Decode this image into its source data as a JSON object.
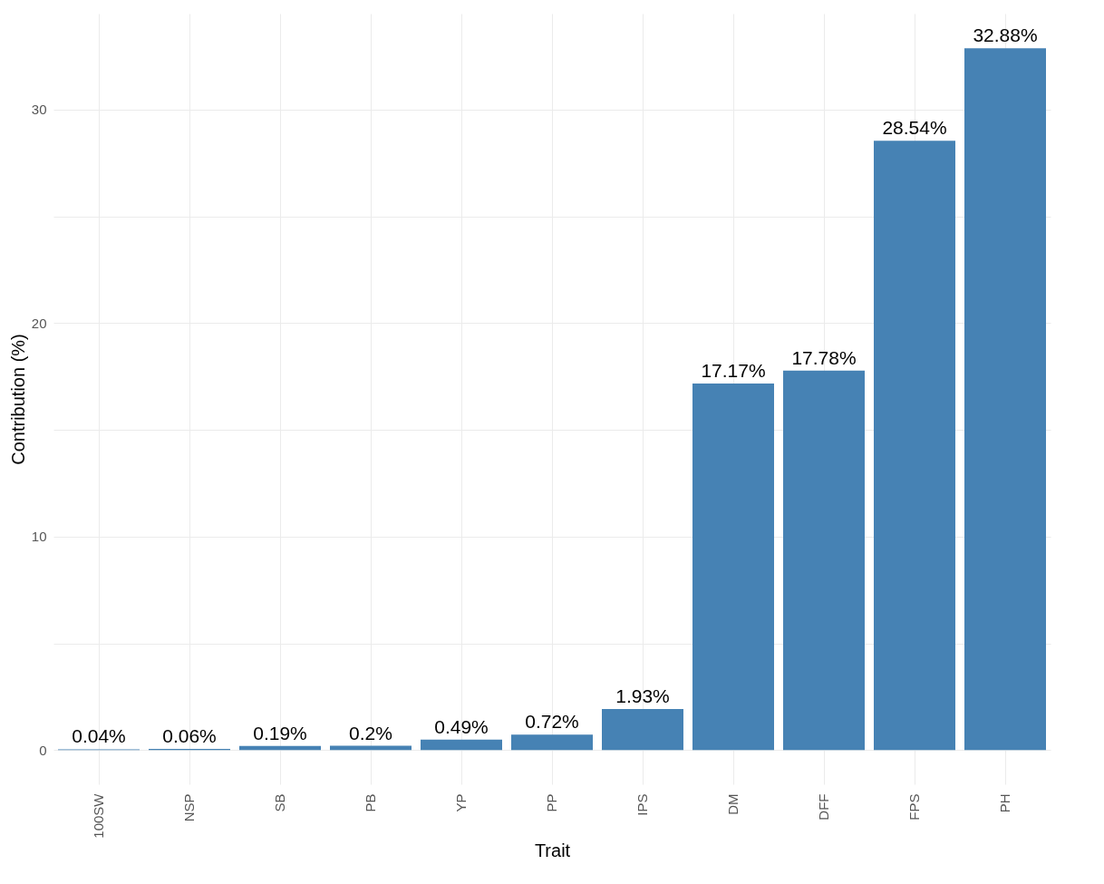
{
  "chart_data": {
    "type": "bar",
    "xlabel": "Trait",
    "ylabel": "Contribution (%)",
    "categories": [
      "100SW",
      "NSP",
      "SB",
      "PB",
      "YP",
      "PP",
      "IPS",
      "DM",
      "DFF",
      "FPS",
      "PH"
    ],
    "values": [
      0.04,
      0.06,
      0.19,
      0.2,
      0.49,
      0.72,
      1.93,
      17.17,
      17.78,
      28.54,
      32.88
    ],
    "value_labels": [
      "0.04%",
      "0.06%",
      "0.19%",
      "0.2%",
      "0.49%",
      "0.72%",
      "1.93%",
      "17.17%",
      "17.78%",
      "28.54%",
      "32.88%"
    ],
    "color": "#4682b4",
    "ylim": [
      -1.6,
      34.5
    ],
    "yticks": [
      0,
      {
        "value": 5,
        "label": null
      },
      10,
      {
        "value": 15,
        "label": null
      },
      20,
      {
        "value": 25,
        "label": null
      },
      30
    ],
    "grid": true
  }
}
